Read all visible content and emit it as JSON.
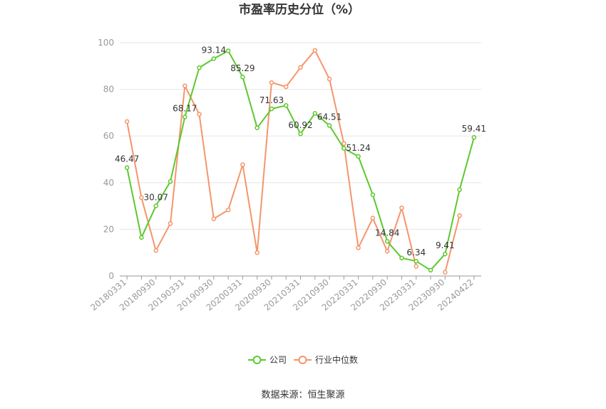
{
  "chart_data": {
    "type": "line",
    "title": "市盈率历史分位（%）",
    "source": "数据来源：恒生聚源",
    "ylim": [
      0,
      100
    ],
    "yticks": [
      0,
      20,
      40,
      60,
      80,
      100
    ],
    "grid": true,
    "legend_position": "bottom",
    "x": [
      "20180331",
      "20180630",
      "20180930",
      "20181231",
      "20190331",
      "20190630",
      "20190930",
      "20191231",
      "20200331",
      "20200630",
      "20200930",
      "20201231",
      "20210331",
      "20210630",
      "20210930",
      "20211231",
      "20220331",
      "20220630",
      "20220930",
      "20221231",
      "20230331",
      "20230630",
      "20230930",
      "20231231",
      "20240422"
    ],
    "x_tick_labels": [
      "20180331",
      "20180930",
      "20190331",
      "20190930",
      "20200331",
      "20200930",
      "20210331",
      "20210930",
      "20220331",
      "20220930",
      "20230331",
      "20230930",
      "20240422"
    ],
    "series": [
      {
        "name": "公司",
        "color": "#5cc92e",
        "values": [
          46.47,
          16.5,
          30.07,
          40.5,
          68.17,
          89.3,
          93.14,
          96.5,
          85.29,
          63.5,
          71.63,
          73.1,
          60.92,
          69.7,
          64.51,
          54.7,
          51.24,
          34.8,
          14.84,
          7.7,
          6.34,
          2.5,
          9.41,
          37.0,
          59.41
        ],
        "labels": {
          "0": "46.47",
          "2": "30.07",
          "4": "68.17",
          "6": "93.14",
          "8": "85.29",
          "10": "71.63",
          "12": "60.92",
          "14": "64.51",
          "16": "51.24",
          "18": "14.84",
          "20": "6.34",
          "22": "9.41",
          "24": "59.41"
        }
      },
      {
        "name": "行业中位数",
        "color": "#f5956b",
        "values": [
          66.2,
          33.6,
          10.9,
          22.5,
          81.5,
          69.3,
          24.5,
          28.3,
          47.7,
          10.0,
          82.9,
          81.1,
          89.4,
          96.7,
          84.4,
          56.8,
          12.1,
          24.8,
          10.6,
          29.2,
          4.1,
          null,
          1.6,
          25.9,
          null
        ]
      }
    ]
  }
}
